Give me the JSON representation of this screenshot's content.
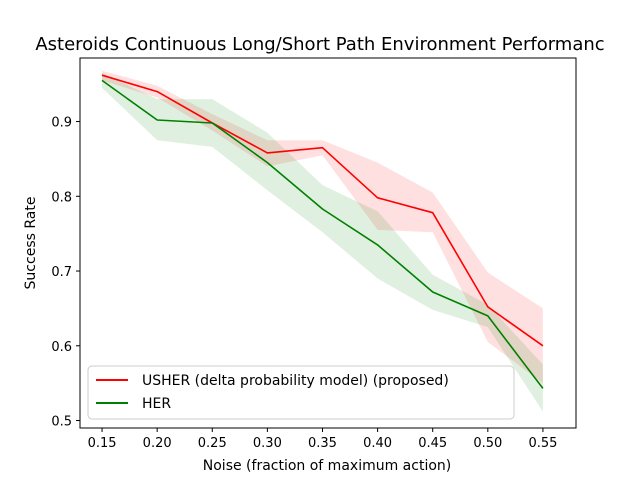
{
  "chart_data": {
    "type": "line",
    "title": "Asteroids Continuous Long/Short Path Environment Performanc",
    "xlabel": "Noise (fraction of maximum action)",
    "ylabel": "Success Rate",
    "x": [
      0.15,
      0.2,
      0.25,
      0.3,
      0.35,
      0.4,
      0.45,
      0.5,
      0.55
    ],
    "x_tick_labels": [
      "0.15",
      "0.20",
      "0.25",
      "0.30",
      "0.35",
      "0.40",
      "0.45",
      "0.50",
      "0.55"
    ],
    "y_ticks": [
      0.5,
      0.6,
      0.7,
      0.8,
      0.9
    ],
    "y_tick_labels": [
      "0.5",
      "0.6",
      "0.7",
      "0.8",
      "0.9"
    ],
    "xlim": [
      0.13,
      0.58
    ],
    "ylim": [
      0.49,
      0.985
    ],
    "grid": false,
    "legend_position": "lower-left",
    "series": [
      {
        "name": "USHER (delta probability model) (proposed)",
        "color": "#ff0000",
        "band_color": "#ff0000",
        "values": [
          0.962,
          0.94,
          0.898,
          0.858,
          0.865,
          0.798,
          0.778,
          0.652,
          0.6
        ],
        "lower": [
          0.955,
          0.932,
          0.888,
          0.84,
          0.855,
          0.755,
          0.752,
          0.605,
          0.55
        ],
        "upper": [
          0.968,
          0.948,
          0.91,
          0.875,
          0.875,
          0.845,
          0.805,
          0.698,
          0.65
        ]
      },
      {
        "name": "HER",
        "color": "#008000",
        "band_color": "#008000",
        "values": [
          0.955,
          0.902,
          0.898,
          0.845,
          0.783,
          0.735,
          0.672,
          0.64,
          0.543
        ],
        "lower": [
          0.945,
          0.875,
          0.866,
          0.808,
          0.752,
          0.69,
          0.648,
          0.625,
          0.512
        ],
        "upper": [
          0.965,
          0.93,
          0.93,
          0.885,
          0.815,
          0.78,
          0.695,
          0.655,
          0.575
        ]
      }
    ]
  }
}
